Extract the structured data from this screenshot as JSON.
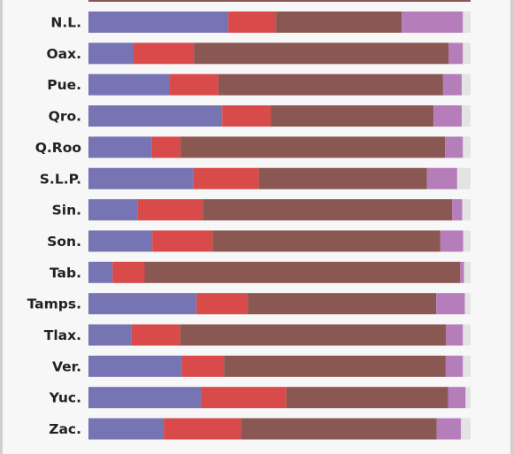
{
  "chart_data": {
    "type": "bar",
    "orientation": "horizontal",
    "stacked": true,
    "categories": [
      "N.L.",
      "Oax.",
      "Pue.",
      "Qro.",
      "Q.Roo",
      "S.L.P.",
      "Sin.",
      "Son.",
      "Tab.",
      "Tamps.",
      "Tlax.",
      "Ver.",
      "Yuc.",
      "Zac."
    ],
    "series": [
      {
        "color": "#7774b3",
        "values": [
          36.6,
          11.8,
          21.3,
          35.0,
          16.5,
          27.5,
          12.8,
          16.7,
          6.3,
          28.3,
          11.3,
          24.4,
          29.5,
          19.7
        ]
      },
      {
        "color": "#d94a4a",
        "values": [
          12.5,
          15.8,
          12.7,
          12.7,
          7.6,
          17.1,
          17.1,
          15.8,
          8.4,
          13.4,
          12.7,
          11.1,
          22.3,
          20.2
        ]
      },
      {
        "color": "#8a5752",
        "values": [
          32.9,
          66.7,
          58.8,
          42.6,
          69.2,
          44.0,
          65.3,
          59.6,
          82.6,
          49.3,
          69.6,
          58.0,
          42.3,
          51.2
        ]
      },
      {
        "color": "#b67dbb",
        "values": [
          16.0,
          3.7,
          4.9,
          7.4,
          4.7,
          7.9,
          2.6,
          6.0,
          1.0,
          7.5,
          4.4,
          4.5,
          4.6,
          6.4
        ]
      },
      {
        "color": "#e3e3e3",
        "values": [
          2.0,
          2.0,
          2.3,
          2.3,
          2.0,
          3.5,
          2.2,
          1.9,
          1.7,
          1.5,
          2.0,
          2.0,
          1.3,
          2.5
        ]
      }
    ]
  }
}
